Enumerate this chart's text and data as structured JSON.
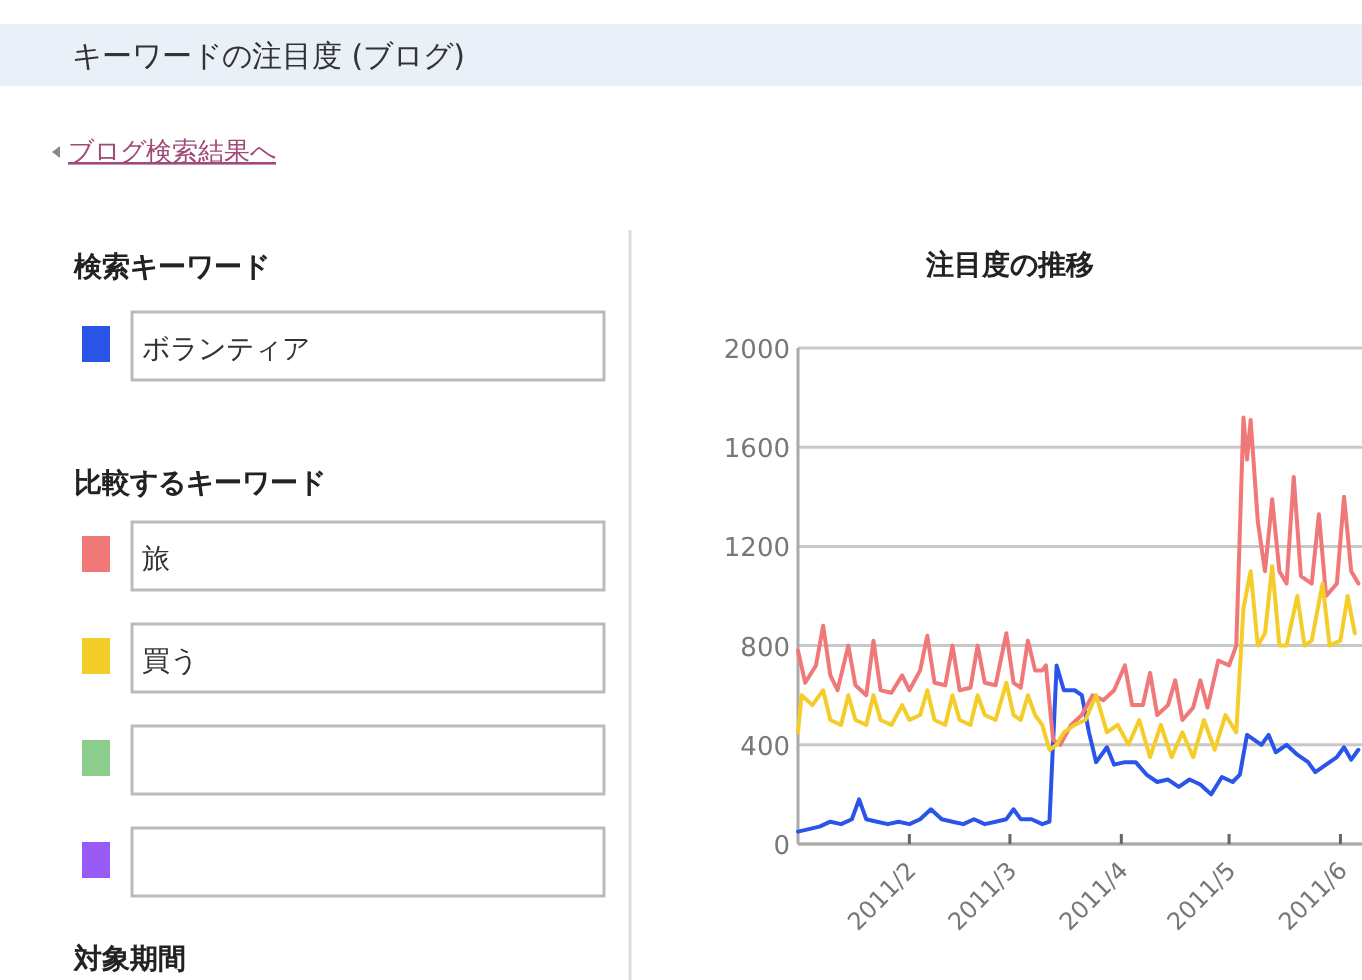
{
  "chart_data": {
    "type": "line",
    "title": "注目度の推移",
    "subtitle": "キーワードの注目度 (ブログ)",
    "legend_title": "検索キーワード",
    "annotations": [
      "ブログ検索結果へ",
      "比較するキーワード",
      "対象期間"
    ],
    "xlim": [
      "2011-01-01",
      "2011-06-07"
    ],
    "xticks": [
      {
        "value": "2011-02-01",
        "label": "2011/2"
      },
      {
        "value": "2011-03-01",
        "label": "2011/3"
      },
      {
        "value": "2011-04-01",
        "label": "2011/4"
      },
      {
        "value": "2011-05-01",
        "label": "2011/5"
      },
      {
        "value": "2011-06-01",
        "label": "2011/6"
      }
    ],
    "ylim": [
      0,
      2000
    ],
    "yticks": [
      0,
      400,
      800,
      1200,
      1600,
      2000
    ],
    "grid": "y",
    "legend": "left",
    "marker": "none",
    "line_style": "solid",
    "series": [
      {
        "name": "ボランティア",
        "color": "#2b55e8",
        "x": [
          "2011-01-01",
          "2011-01-04",
          "2011-01-07",
          "2011-01-10",
          "2011-01-13",
          "2011-01-16",
          "2011-01-18",
          "2011-01-20",
          "2011-01-23",
          "2011-01-26",
          "2011-01-29",
          "2011-02-01",
          "2011-02-04",
          "2011-02-07",
          "2011-02-10",
          "2011-02-13",
          "2011-02-16",
          "2011-02-19",
          "2011-02-22",
          "2011-02-25",
          "2011-02-28",
          "2011-03-02",
          "2011-03-04",
          "2011-03-07",
          "2011-03-10",
          "2011-03-12",
          "2011-03-14",
          "2011-03-16",
          "2011-03-19",
          "2011-03-21",
          "2011-03-23",
          "2011-03-25",
          "2011-03-28",
          "2011-03-30",
          "2011-04-02",
          "2011-04-05",
          "2011-04-08",
          "2011-04-11",
          "2011-04-14",
          "2011-04-17",
          "2011-04-20",
          "2011-04-23",
          "2011-04-26",
          "2011-04-29",
          "2011-05-02",
          "2011-05-04",
          "2011-05-06",
          "2011-05-08",
          "2011-05-10",
          "2011-05-12",
          "2011-05-14",
          "2011-05-17",
          "2011-05-20",
          "2011-05-23",
          "2011-05-25",
          "2011-05-28",
          "2011-05-31",
          "2011-06-02",
          "2011-06-04",
          "2011-06-06"
        ],
        "values": [
          50,
          60,
          70,
          90,
          80,
          100,
          180,
          100,
          90,
          80,
          90,
          80,
          100,
          140,
          100,
          90,
          80,
          100,
          80,
          90,
          100,
          140,
          100,
          100,
          80,
          90,
          720,
          620,
          620,
          600,
          450,
          330,
          390,
          320,
          330,
          330,
          280,
          250,
          260,
          230,
          260,
          240,
          200,
          270,
          250,
          280,
          440,
          420,
          400,
          440,
          370,
          400,
          360,
          330,
          290,
          320,
          350,
          390,
          340,
          380
        ]
      },
      {
        "name": "旅",
        "color": "#f07878",
        "x": [
          "2011-01-01",
          "2011-01-03",
          "2011-01-06",
          "2011-01-08",
          "2011-01-10",
          "2011-01-12",
          "2011-01-15",
          "2011-01-17",
          "2011-01-20",
          "2011-01-22",
          "2011-01-24",
          "2011-01-27",
          "2011-01-30",
          "2011-02-01",
          "2011-02-04",
          "2011-02-06",
          "2011-02-08",
          "2011-02-11",
          "2011-02-13",
          "2011-02-15",
          "2011-02-18",
          "2011-02-20",
          "2011-02-22",
          "2011-02-25",
          "2011-02-28",
          "2011-03-02",
          "2011-03-04",
          "2011-03-06",
          "2011-03-08",
          "2011-03-10",
          "2011-03-11",
          "2011-03-13",
          "2011-03-15",
          "2011-03-18",
          "2011-03-21",
          "2011-03-24",
          "2011-03-27",
          "2011-03-30",
          "2011-04-02",
          "2011-04-04",
          "2011-04-07",
          "2011-04-09",
          "2011-04-11",
          "2011-04-14",
          "2011-04-16",
          "2011-04-18",
          "2011-04-21",
          "2011-04-23",
          "2011-04-25",
          "2011-04-28",
          "2011-05-01",
          "2011-05-03",
          "2011-05-05",
          "2011-05-06",
          "2011-05-07",
          "2011-05-09",
          "2011-05-11",
          "2011-05-13",
          "2011-05-15",
          "2011-05-17",
          "2011-05-19",
          "2011-05-21",
          "2011-05-24",
          "2011-05-26",
          "2011-05-28",
          "2011-05-31",
          "2011-06-02",
          "2011-06-04",
          "2011-06-06"
        ],
        "values": [
          780,
          650,
          720,
          880,
          680,
          620,
          800,
          640,
          600,
          820,
          620,
          610,
          680,
          620,
          700,
          840,
          650,
          640,
          800,
          620,
          630,
          800,
          650,
          640,
          850,
          650,
          630,
          820,
          700,
          700,
          720,
          420,
          400,
          480,
          520,
          600,
          580,
          620,
          720,
          560,
          560,
          690,
          520,
          560,
          660,
          500,
          550,
          660,
          550,
          740,
          720,
          800,
          1720,
          1550,
          1710,
          1300,
          1100,
          1390,
          1100,
          1050,
          1480,
          1080,
          1050,
          1330,
          1000,
          1050,
          1400,
          1100,
          1050
        ]
      },
      {
        "name": "買う",
        "color": "#f5cd2a",
        "x": [
          "2011-01-01",
          "2011-01-02",
          "2011-01-05",
          "2011-01-08",
          "2011-01-10",
          "2011-01-13",
          "2011-01-15",
          "2011-01-17",
          "2011-01-20",
          "2011-01-22",
          "2011-01-24",
          "2011-01-27",
          "2011-01-30",
          "2011-02-01",
          "2011-02-04",
          "2011-02-06",
          "2011-02-08",
          "2011-02-11",
          "2011-02-13",
          "2011-02-15",
          "2011-02-18",
          "2011-02-20",
          "2011-02-22",
          "2011-02-25",
          "2011-02-28",
          "2011-03-02",
          "2011-03-04",
          "2011-03-06",
          "2011-03-08",
          "2011-03-10",
          "2011-03-12",
          "2011-03-14",
          "2011-03-16",
          "2011-03-19",
          "2011-03-22",
          "2011-03-25",
          "2011-03-28",
          "2011-03-31",
          "2011-04-03",
          "2011-04-06",
          "2011-04-09",
          "2011-04-12",
          "2011-04-15",
          "2011-04-18",
          "2011-04-21",
          "2011-04-24",
          "2011-04-27",
          "2011-04-30",
          "2011-05-03",
          "2011-05-05",
          "2011-05-07",
          "2011-05-09",
          "2011-05-11",
          "2011-05-13",
          "2011-05-15",
          "2011-05-17",
          "2011-05-20",
          "2011-05-22",
          "2011-05-24",
          "2011-05-27",
          "2011-05-29",
          "2011-06-01",
          "2011-06-03",
          "2011-06-05"
        ],
        "values": [
          450,
          600,
          560,
          620,
          500,
          480,
          600,
          500,
          480,
          600,
          500,
          480,
          560,
          500,
          520,
          620,
          500,
          480,
          600,
          500,
          480,
          600,
          520,
          500,
          650,
          520,
          500,
          600,
          520,
          480,
          380,
          400,
          450,
          480,
          500,
          600,
          450,
          480,
          400,
          500,
          350,
          480,
          350,
          450,
          350,
          500,
          380,
          520,
          450,
          950,
          1100,
          800,
          850,
          1120,
          800,
          800,
          1000,
          800,
          820,
          1050,
          800,
          820,
          1000,
          850
        ]
      }
    ]
  }
}
